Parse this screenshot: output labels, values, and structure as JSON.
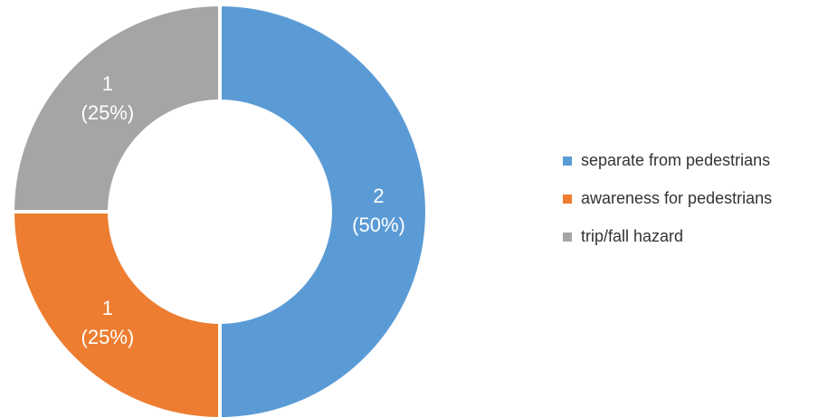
{
  "chart_data": {
    "type": "pie",
    "variant": "donut",
    "title": "",
    "categories": [
      "separate from pedestrians",
      "awareness for pedestrians",
      "trip/fall hazard"
    ],
    "values": [
      2,
      1,
      1
    ],
    "percent_labels": [
      "(50%)",
      "(25%)",
      "(25%)"
    ],
    "colors": [
      "#5B9BD5",
      "#ED7D31",
      "#A5A5A5"
    ],
    "legend_position": "right",
    "legend": [
      "separate from pedestrians",
      "awareness for pedestrians",
      "trip/fall hazard"
    ]
  }
}
